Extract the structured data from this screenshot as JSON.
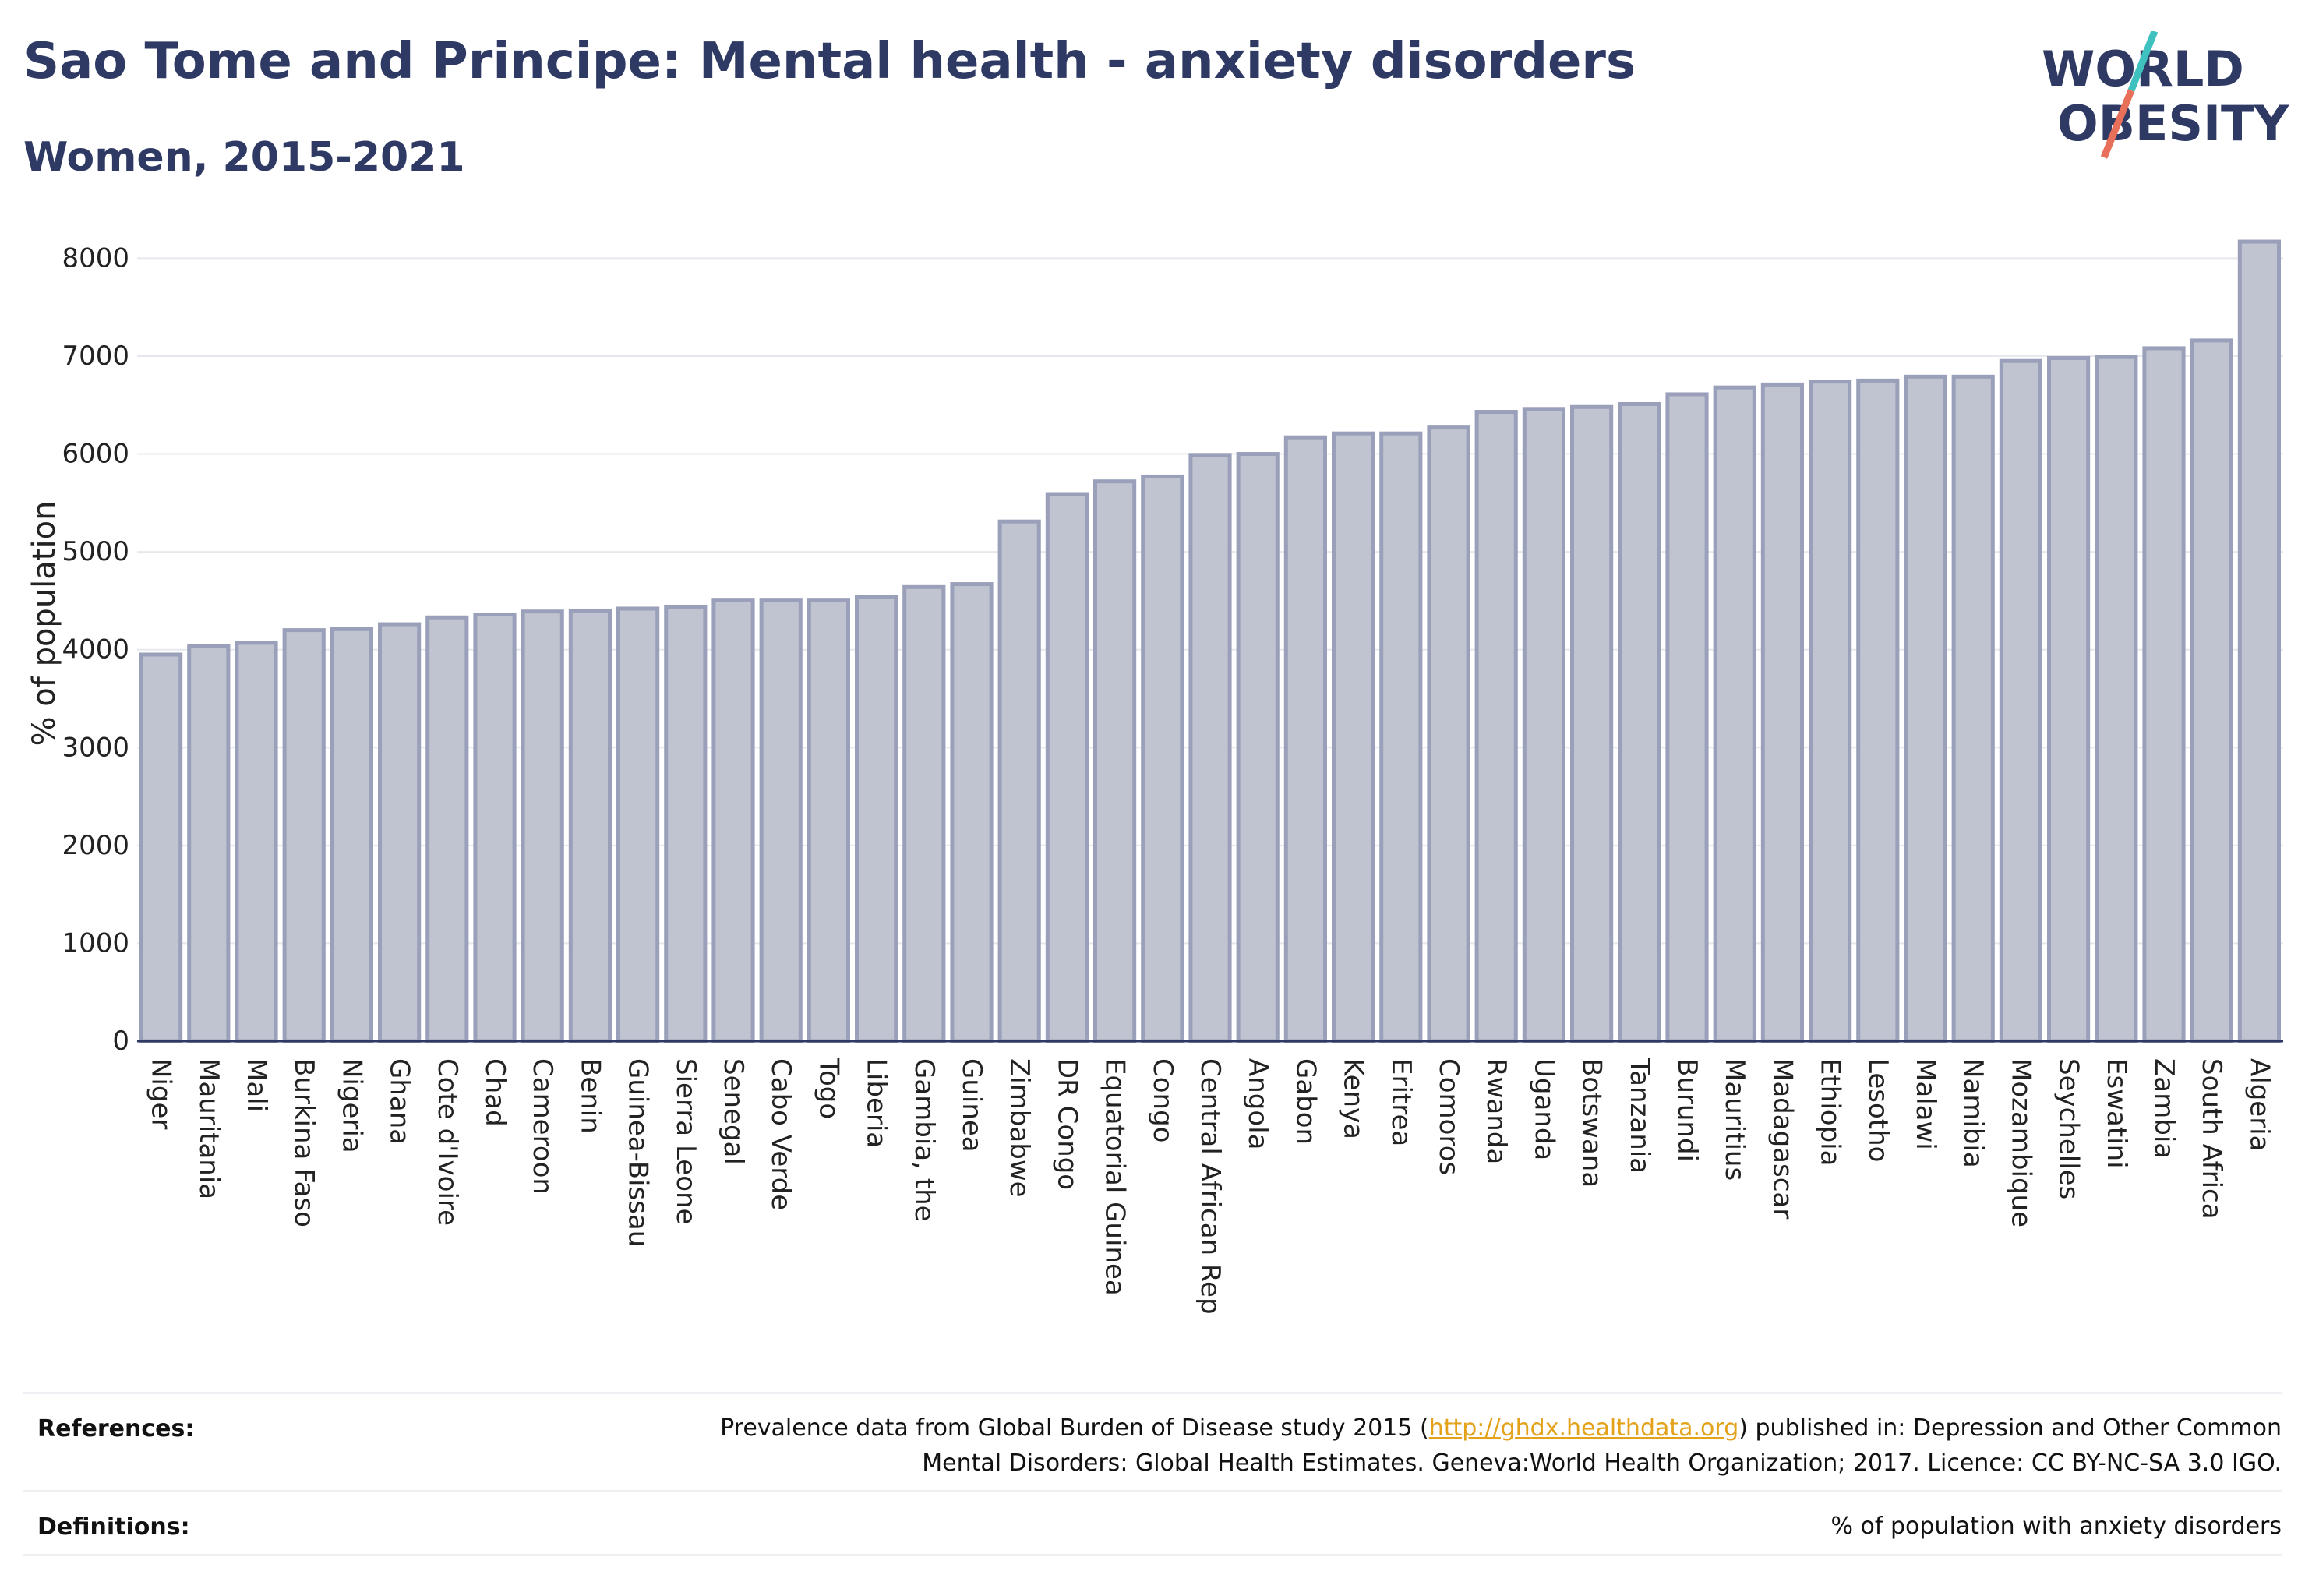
{
  "header": {
    "title": "Sao Tome and Principe: Mental health - anxiety disorders",
    "subtitle": "Women, 2015-2021"
  },
  "logo": {
    "line1": "WORLD",
    "line2": "OBESITY",
    "text_color": "#2e3a63",
    "slash_top_color": "#3fc1c0",
    "slash_bottom_color": "#e8705a"
  },
  "chart_data": {
    "type": "bar",
    "ylabel": "% of population",
    "xlabel": "",
    "ylim": [
      0,
      8250
    ],
    "yticks": [
      0,
      1000,
      2000,
      3000,
      4000,
      5000,
      6000,
      7000,
      8000
    ],
    "grid": true,
    "bar_fill": "#c0c4d1",
    "bar_stroke": "#9aa0b9",
    "categories": [
      "Niger",
      "Mauritania",
      "Mali",
      "Burkina Faso",
      "Nigeria",
      "Ghana",
      "Cote d'Ivoire",
      "Chad",
      "Cameroon",
      "Benin",
      "Guinea-Bissau",
      "Sierra Leone",
      "Senegal",
      "Cabo Verde",
      "Togo",
      "Liberia",
      "Gambia, the",
      "Guinea",
      "Zimbabwe",
      "DR Congo",
      "Equatorial Guinea",
      "Congo",
      "Central African Rep",
      "Angola",
      "Gabon",
      "Kenya",
      "Eritrea",
      "Comoros",
      "Rwanda",
      "Uganda",
      "Botswana",
      "Tanzania",
      "Burundi",
      "Mauritius",
      "Madagascar",
      "Ethiopia",
      "Lesotho",
      "Malawi",
      "Namibia",
      "Mozambique",
      "Seychelles",
      "Eswatini",
      "Zambia",
      "South Africa",
      "Algeria"
    ],
    "values": [
      3950,
      4040,
      4070,
      4200,
      4210,
      4260,
      4330,
      4360,
      4390,
      4400,
      4420,
      4440,
      4510,
      4510,
      4510,
      4540,
      4640,
      4670,
      5310,
      5590,
      5720,
      5770,
      5990,
      6000,
      6170,
      6210,
      6210,
      6270,
      6430,
      6460,
      6480,
      6510,
      6610,
      6680,
      6710,
      6740,
      6750,
      6790,
      6790,
      6950,
      6980,
      6990,
      7080,
      7160,
      8170
    ]
  },
  "references": {
    "references_label": "References:",
    "ref_line1_pre": "Prevalence data from Global Burden of Disease study 2015 (",
    "ref_link": "http://ghdx.healthdata.org",
    "ref_line1_post": ") published in: Depression and Other Common",
    "ref_line2": "Mental Disorders: Global Health Estimates. Geneva:World Health Organization; 2017. Licence: CC BY-NC-SA 3.0 IGO.",
    "definitions_label": "Definitions:",
    "definitions_text": "% of population with anxiety disorders"
  }
}
